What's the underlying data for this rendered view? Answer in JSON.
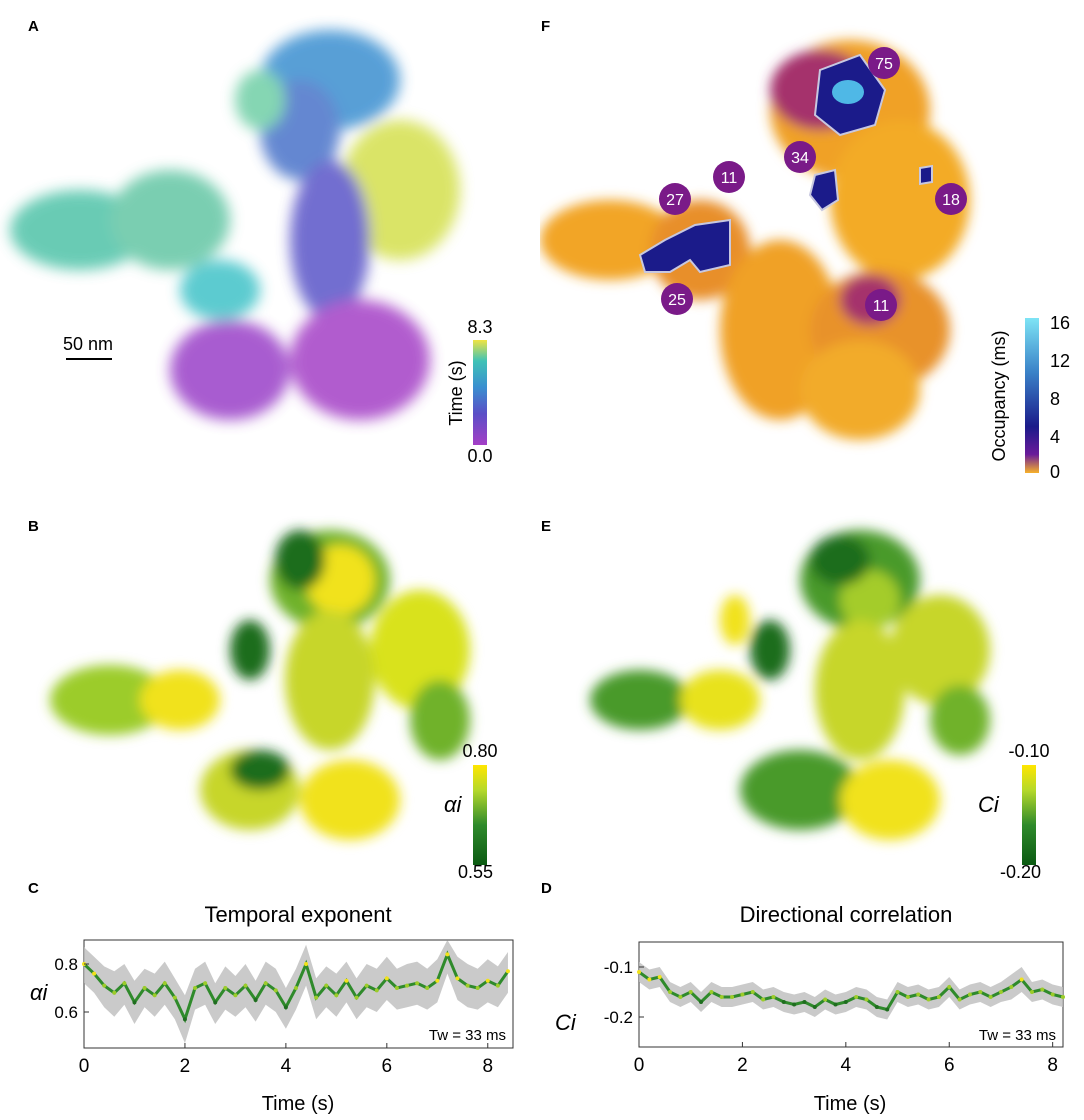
{
  "panels": {
    "A": {
      "letter": "A",
      "scalebar_label": "50 nm",
      "colorbar": {
        "label": "Time (s)",
        "max_label": "8.3",
        "min_label": "0.0",
        "colors": [
          "#f0e442",
          "#3fc2b6",
          "#3a8fd0",
          "#5a4fc7",
          "#a43fc6"
        ]
      }
    },
    "F": {
      "letter": "F",
      "colorbar": {
        "label": "Occupancy (ms)",
        "tick_labels": [
          "16",
          "12",
          "8",
          "4",
          "0"
        ],
        "colors": [
          "#7ee4f5",
          "#3a82c8",
          "#1b1b8a",
          "#6a1b9a",
          "#f7b12a"
        ]
      },
      "hotspot_labels": [
        "75",
        "34",
        "27",
        "11",
        "18",
        "25",
        "11"
      ]
    },
    "B": {
      "letter": "B",
      "colorbar": {
        "symbol": "αi",
        "max_label": "0.80",
        "min_label": "0.55",
        "colors": [
          "#ffe600",
          "#b6d92a",
          "#2f8a2b",
          "#0b5a12"
        ]
      }
    },
    "E": {
      "letter": "E",
      "colorbar": {
        "symbol": "Ci",
        "max_label": "-0.10",
        "min_label": "-0.20",
        "colors": [
          "#ffe600",
          "#b6d92a",
          "#2f8a2b",
          "#0b5a12"
        ]
      }
    },
    "C": {
      "letter": "C"
    },
    "D": {
      "letter": "D"
    }
  },
  "chart_data": [
    {
      "id": "C",
      "type": "line",
      "title": "Temporal exponent",
      "xlabel": "Time (s)",
      "ylabel": "αi",
      "xlim": [
        0,
        8.5
      ],
      "ylim": [
        0.45,
        0.9
      ],
      "xticks": [
        0,
        2,
        4,
        6,
        8
      ],
      "yticks": [
        0.6,
        0.8
      ],
      "ytick_labels": [
        "0.6",
        "0.8"
      ],
      "annotation": "Tw = 33 ms",
      "x": [
        0,
        0.2,
        0.4,
        0.6,
        0.8,
        1.0,
        1.2,
        1.4,
        1.6,
        1.8,
        2.0,
        2.2,
        2.4,
        2.6,
        2.8,
        3.0,
        3.2,
        3.4,
        3.6,
        3.8,
        4.0,
        4.2,
        4.4,
        4.6,
        4.8,
        5.0,
        5.2,
        5.4,
        5.6,
        5.8,
        6.0,
        6.2,
        6.4,
        6.6,
        6.8,
        7.0,
        7.2,
        7.4,
        7.6,
        7.8,
        8.0,
        8.2,
        8.4
      ],
      "series": [
        {
          "name": "mean",
          "values": [
            0.8,
            0.76,
            0.71,
            0.68,
            0.72,
            0.64,
            0.7,
            0.67,
            0.72,
            0.66,
            0.57,
            0.7,
            0.72,
            0.64,
            0.7,
            0.67,
            0.71,
            0.65,
            0.72,
            0.69,
            0.62,
            0.7,
            0.8,
            0.66,
            0.71,
            0.67,
            0.73,
            0.66,
            0.71,
            0.69,
            0.74,
            0.7,
            0.71,
            0.72,
            0.7,
            0.73,
            0.84,
            0.74,
            0.71,
            0.7,
            0.73,
            0.71,
            0.77
          ]
        },
        {
          "name": "upper",
          "values": [
            0.87,
            0.83,
            0.79,
            0.77,
            0.8,
            0.73,
            0.78,
            0.76,
            0.81,
            0.74,
            0.67,
            0.78,
            0.81,
            0.72,
            0.79,
            0.75,
            0.8,
            0.73,
            0.81,
            0.78,
            0.7,
            0.78,
            0.88,
            0.74,
            0.79,
            0.76,
            0.81,
            0.74,
            0.8,
            0.78,
            0.83,
            0.78,
            0.8,
            0.81,
            0.78,
            0.82,
            0.9,
            0.83,
            0.8,
            0.78,
            0.82,
            0.79,
            0.85
          ]
        },
        {
          "name": "lower",
          "values": [
            0.72,
            0.68,
            0.62,
            0.58,
            0.63,
            0.55,
            0.62,
            0.58,
            0.63,
            0.57,
            0.47,
            0.61,
            0.63,
            0.55,
            0.61,
            0.58,
            0.62,
            0.56,
            0.63,
            0.6,
            0.53,
            0.61,
            0.71,
            0.57,
            0.62,
            0.58,
            0.64,
            0.57,
            0.62,
            0.6,
            0.65,
            0.61,
            0.62,
            0.63,
            0.61,
            0.64,
            0.76,
            0.65,
            0.62,
            0.61,
            0.64,
            0.62,
            0.68
          ]
        }
      ]
    },
    {
      "id": "D",
      "type": "line",
      "title": "Directional correlation",
      "xlabel": "Time (s)",
      "ylabel": "Ci",
      "xlim": [
        0,
        8.2
      ],
      "ylim": [
        -0.26,
        -0.05
      ],
      "xticks": [
        0,
        2,
        4,
        6,
        8
      ],
      "yticks": [
        -0.2,
        -0.1
      ],
      "ytick_labels": [
        "-0.2",
        "-0.1"
      ],
      "annotation": "Tw = 33 ms",
      "x": [
        0,
        0.2,
        0.4,
        0.6,
        0.8,
        1.0,
        1.2,
        1.4,
        1.6,
        1.8,
        2.0,
        2.2,
        2.4,
        2.6,
        2.8,
        3.0,
        3.2,
        3.4,
        3.6,
        3.8,
        4.0,
        4.2,
        4.4,
        4.6,
        4.8,
        5.0,
        5.2,
        5.4,
        5.6,
        5.8,
        6.0,
        6.2,
        6.4,
        6.6,
        6.8,
        7.0,
        7.2,
        7.4,
        7.6,
        7.8,
        8.0,
        8.2
      ],
      "series": [
        {
          "name": "mean",
          "values": [
            -0.11,
            -0.125,
            -0.12,
            -0.15,
            -0.16,
            -0.15,
            -0.17,
            -0.15,
            -0.16,
            -0.16,
            -0.155,
            -0.15,
            -0.165,
            -0.16,
            -0.17,
            -0.175,
            -0.17,
            -0.18,
            -0.165,
            -0.175,
            -0.17,
            -0.16,
            -0.165,
            -0.18,
            -0.185,
            -0.15,
            -0.16,
            -0.155,
            -0.165,
            -0.16,
            -0.14,
            -0.165,
            -0.155,
            -0.15,
            -0.16,
            -0.15,
            -0.14,
            -0.125,
            -0.15,
            -0.145,
            -0.155,
            -0.16
          ]
        },
        {
          "name": "upper",
          "values": [
            -0.09,
            -0.105,
            -0.1,
            -0.13,
            -0.14,
            -0.13,
            -0.15,
            -0.13,
            -0.14,
            -0.14,
            -0.135,
            -0.13,
            -0.145,
            -0.14,
            -0.15,
            -0.155,
            -0.15,
            -0.16,
            -0.145,
            -0.155,
            -0.15,
            -0.14,
            -0.145,
            -0.16,
            -0.165,
            -0.13,
            -0.14,
            -0.135,
            -0.145,
            -0.14,
            -0.12,
            -0.145,
            -0.135,
            -0.13,
            -0.14,
            -0.13,
            -0.115,
            -0.1,
            -0.13,
            -0.125,
            -0.135,
            -0.14
          ]
        },
        {
          "name": "lower",
          "values": [
            -0.13,
            -0.145,
            -0.14,
            -0.17,
            -0.18,
            -0.17,
            -0.19,
            -0.17,
            -0.18,
            -0.18,
            -0.175,
            -0.17,
            -0.185,
            -0.18,
            -0.19,
            -0.195,
            -0.19,
            -0.2,
            -0.185,
            -0.195,
            -0.19,
            -0.18,
            -0.185,
            -0.2,
            -0.205,
            -0.17,
            -0.18,
            -0.175,
            -0.185,
            -0.18,
            -0.16,
            -0.185,
            -0.175,
            -0.17,
            -0.18,
            -0.17,
            -0.165,
            -0.15,
            -0.17,
            -0.165,
            -0.175,
            -0.18
          ]
        }
      ]
    }
  ]
}
